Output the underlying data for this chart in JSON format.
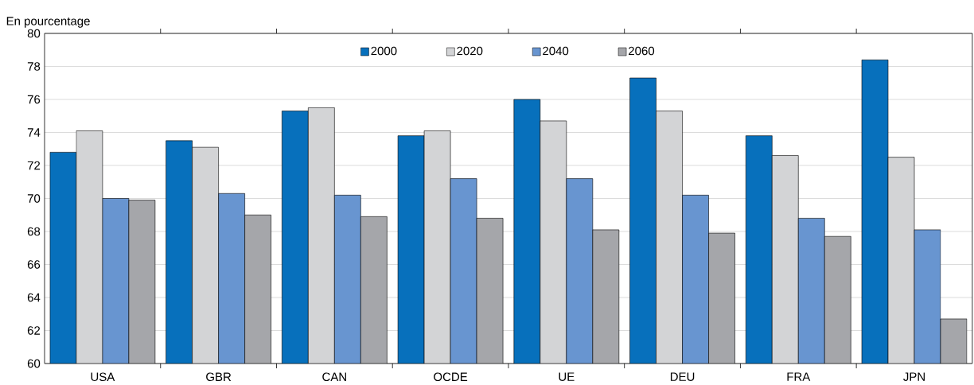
{
  "chart_data": {
    "type": "bar",
    "ylabel": "En pourcentage",
    "categories": [
      "USA",
      "GBR",
      "CAN",
      "OCDE",
      "UE",
      "DEU",
      "FRA",
      "JPN"
    ],
    "series": [
      {
        "name": "2000",
        "color": "#0770bc",
        "values": [
          72.8,
          73.5,
          75.3,
          73.8,
          76.0,
          77.3,
          73.8,
          78.4
        ]
      },
      {
        "name": "2020",
        "color": "#d3d4d6",
        "values": [
          74.1,
          73.1,
          75.5,
          74.1,
          74.7,
          75.3,
          72.6,
          72.5
        ]
      },
      {
        "name": "2040",
        "color": "#6895d0",
        "values": [
          70.0,
          70.3,
          70.2,
          71.2,
          71.2,
          70.2,
          68.8,
          68.1
        ]
      },
      {
        "name": "2060",
        "color": "#a5a6aa",
        "values": [
          69.9,
          69.0,
          68.9,
          68.8,
          68.1,
          67.9,
          67.7,
          62.7
        ]
      }
    ],
    "ylim": [
      60,
      80
    ],
    "yticks": [
      60,
      62,
      64,
      66,
      68,
      70,
      72,
      74,
      76,
      78,
      80
    ],
    "grid": "y",
    "legend": "top"
  }
}
